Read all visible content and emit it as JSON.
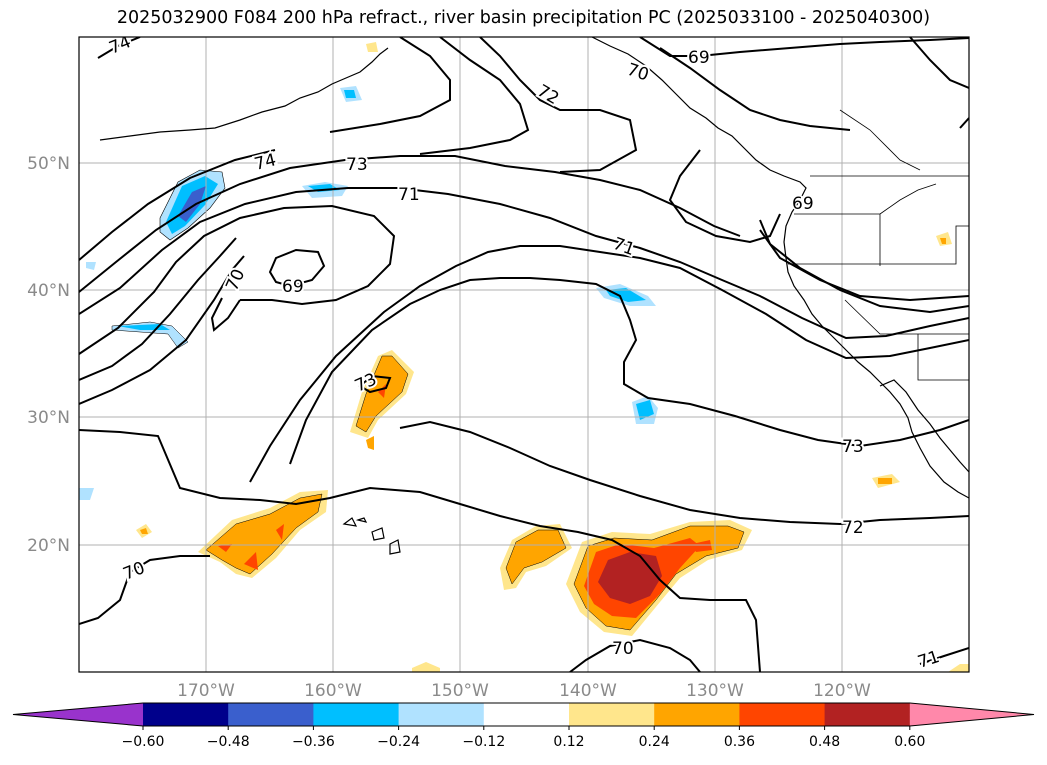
{
  "title": "2025032900 F084 200 hPa refract., river basin precipitation PC (2025033100 - 2025040300)",
  "lat_labels": [
    "50°N",
    "40°N",
    "30°N",
    "20°N"
  ],
  "lon_labels": [
    "170°W",
    "160°W",
    "150°W",
    "140°W",
    "130°W",
    "120°W"
  ],
  "contour_labels": [
    "74",
    "74",
    "73",
    "71",
    "70",
    "69",
    "73",
    "71",
    "73",
    "72",
    "70",
    "70",
    "71",
    "69",
    "72",
    "70"
  ],
  "colorbar": {
    "ticks": [
      "−0.60",
      "−0.48",
      "−0.36",
      "−0.24",
      "−0.12",
      "0.12",
      "0.24",
      "0.36",
      "0.48",
      "0.60"
    ],
    "colors": [
      "#9933cc",
      "#00008b",
      "#3a5fcd",
      "#00bfff",
      "#b0e2ff",
      "#ffffff",
      "#ffe68c",
      "#ffa500",
      "#ff4500",
      "#b22222",
      "#ff88aa"
    ]
  },
  "colors": {
    "contour": "#000000",
    "grid": "#b0b0b0",
    "axis_label": "#8a8a8a"
  }
}
